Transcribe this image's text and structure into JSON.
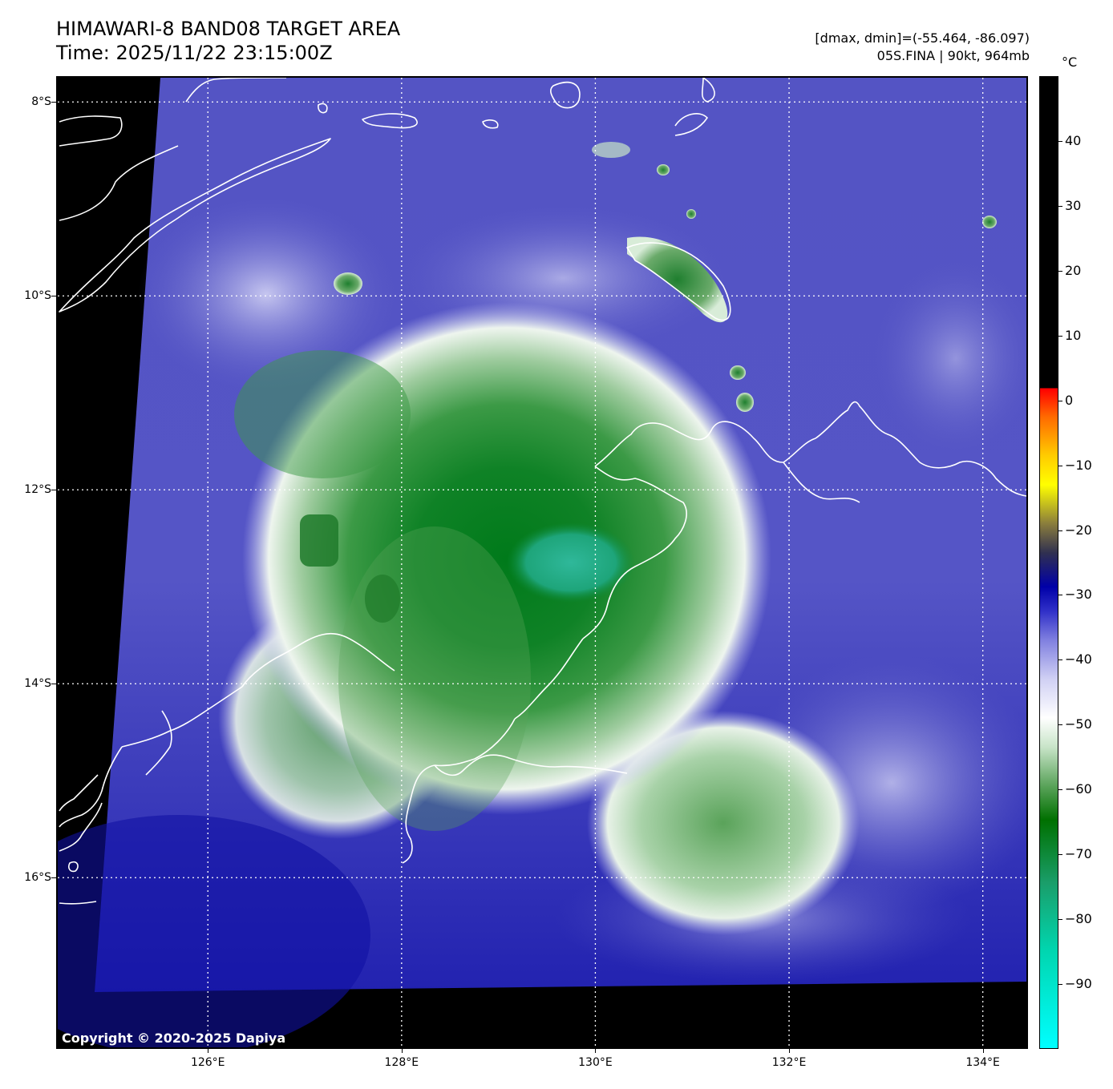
{
  "header": {
    "title_line1": "HIMAWARI-8 BAND08 TARGET AREA",
    "title_line2": "Time: 2025/11/22 23:15:00Z",
    "info_line1": "[dmax, dmin]=(-55.464, -86.097)",
    "info_line2": "05S.FINA | 90kt, 964mb"
  },
  "map": {
    "copyright": "Copyright © 2020-2025 Dapiya",
    "lat_labels": [
      "8°S",
      "10°S",
      "12°S",
      "14°S",
      "16°S"
    ],
    "lon_labels": [
      "126°E",
      "128°E",
      "130°E",
      "132°E",
      "134°E"
    ],
    "lat_values": [
      -8,
      -10,
      -12,
      -14,
      -16
    ],
    "lon_values": [
      126,
      128,
      130,
      132,
      134
    ],
    "extent": {
      "lon_min": 124.45,
      "lon_max": 134.45,
      "lat_max": -7.75,
      "lat_min": -17.75
    },
    "storm_center": {
      "lon": 129.6,
      "lat": -12.5
    }
  },
  "colorbar": {
    "unit": "°C",
    "labels": [
      "40",
      "30",
      "20",
      "10",
      "0",
      "−10",
      "−20",
      "−30",
      "−40",
      "−50",
      "−60",
      "−70",
      "−80",
      "−90"
    ],
    "values": [
      40,
      30,
      20,
      10,
      0,
      -10,
      -20,
      -30,
      -40,
      -50,
      -60,
      -70,
      -80,
      -90
    ],
    "range": [
      -100,
      50
    ]
  }
}
